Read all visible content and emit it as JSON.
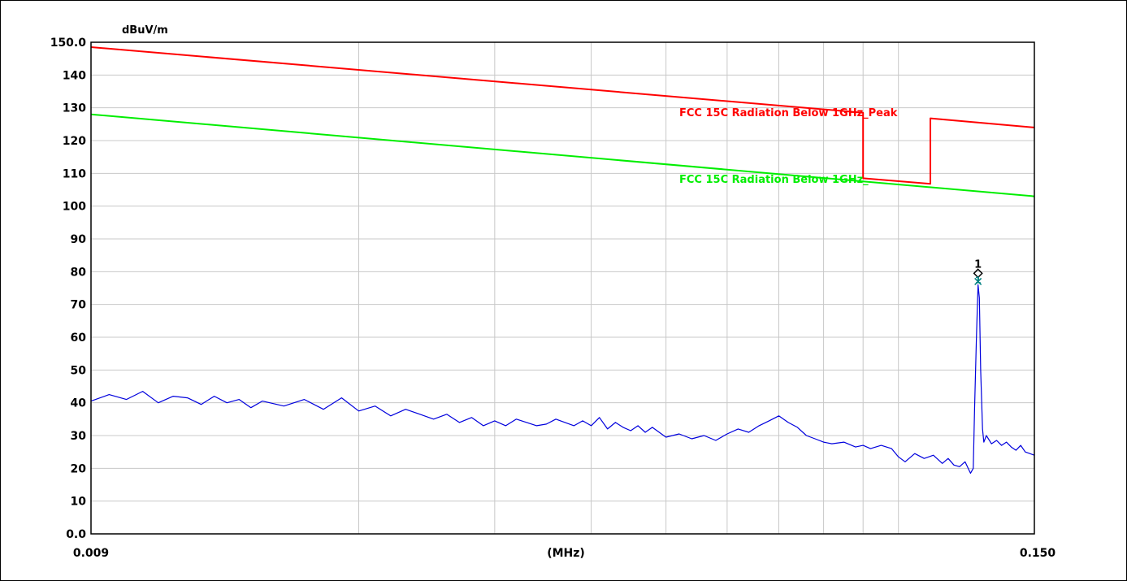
{
  "chart_data": {
    "type": "line",
    "ylabel": "dBuV/m",
    "xlabel": "(MHz)",
    "x_scale": "log",
    "xlim": [
      0.009,
      0.15
    ],
    "ylim": [
      0,
      150
    ],
    "y_ticks": [
      150,
      140,
      130,
      120,
      110,
      100,
      90,
      80,
      70,
      60,
      50,
      40,
      30,
      20,
      10,
      0
    ],
    "y_tick_labels": [
      "150.0",
      "140",
      "130",
      "120",
      "110",
      "100",
      "90",
      "80",
      "70",
      "60",
      "50",
      "40",
      "30",
      "20",
      "10",
      "0.0"
    ],
    "x_tick_labels": [
      "0.009",
      "(MHz)",
      "0.150"
    ],
    "grid": true,
    "series": [
      {
        "name": "FCC 15C Radiation Below 1GHz_Peak",
        "color": "#ff0000",
        "points": [
          [
            0.009,
            148.5
          ],
          [
            0.09,
            128.5
          ],
          [
            0.09,
            108.5
          ],
          [
            0.11,
            106.8
          ],
          [
            0.11,
            126.8
          ],
          [
            0.15,
            124.0
          ]
        ]
      },
      {
        "name": "FCC 15C Radiation Below 1GHz_",
        "color": "#00ee00",
        "points": [
          [
            0.009,
            128.0
          ],
          [
            0.15,
            103.0
          ]
        ]
      },
      {
        "color": "#0000dd",
        "points": [
          [
            0.009,
            40.5
          ],
          [
            0.0095,
            42.5
          ],
          [
            0.01,
            41.0
          ],
          [
            0.0105,
            43.5
          ],
          [
            0.011,
            40.0
          ],
          [
            0.0115,
            42.0
          ],
          [
            0.012,
            41.5
          ],
          [
            0.0125,
            39.5
          ],
          [
            0.013,
            42.0
          ],
          [
            0.0135,
            40.0
          ],
          [
            0.014,
            41.0
          ],
          [
            0.0145,
            38.5
          ],
          [
            0.015,
            40.5
          ],
          [
            0.016,
            39.0
          ],
          [
            0.017,
            41.0
          ],
          [
            0.018,
            38.0
          ],
          [
            0.019,
            41.5
          ],
          [
            0.02,
            37.5
          ],
          [
            0.021,
            39.0
          ],
          [
            0.022,
            36.0
          ],
          [
            0.023,
            38.0
          ],
          [
            0.024,
            36.5
          ],
          [
            0.025,
            35.0
          ],
          [
            0.026,
            36.5
          ],
          [
            0.027,
            34.0
          ],
          [
            0.028,
            35.5
          ],
          [
            0.029,
            33.0
          ],
          [
            0.03,
            34.5
          ],
          [
            0.031,
            33.0
          ],
          [
            0.032,
            35.0
          ],
          [
            0.033,
            34.0
          ],
          [
            0.034,
            33.0
          ],
          [
            0.035,
            33.5
          ],
          [
            0.036,
            35.0
          ],
          [
            0.037,
            34.0
          ],
          [
            0.038,
            33.0
          ],
          [
            0.039,
            34.5
          ],
          [
            0.04,
            33.0
          ],
          [
            0.041,
            35.5
          ],
          [
            0.042,
            32.0
          ],
          [
            0.043,
            34.0
          ],
          [
            0.044,
            32.5
          ],
          [
            0.045,
            31.5
          ],
          [
            0.046,
            33.0
          ],
          [
            0.047,
            31.0
          ],
          [
            0.048,
            32.5
          ],
          [
            0.05,
            29.5
          ],
          [
            0.052,
            30.5
          ],
          [
            0.054,
            29.0
          ],
          [
            0.056,
            30.0
          ],
          [
            0.058,
            28.5
          ],
          [
            0.06,
            30.5
          ],
          [
            0.062,
            32.0
          ],
          [
            0.064,
            31.0
          ],
          [
            0.066,
            33.0
          ],
          [
            0.068,
            34.5
          ],
          [
            0.07,
            36.0
          ],
          [
            0.072,
            34.0
          ],
          [
            0.074,
            32.5
          ],
          [
            0.076,
            30.0
          ],
          [
            0.078,
            29.0
          ],
          [
            0.08,
            28.0
          ],
          [
            0.082,
            27.5
          ],
          [
            0.085,
            28.0
          ],
          [
            0.088,
            26.5
          ],
          [
            0.09,
            27.0
          ],
          [
            0.092,
            26.0
          ],
          [
            0.095,
            27.0
          ],
          [
            0.098,
            26.0
          ],
          [
            0.1,
            23.5
          ],
          [
            0.102,
            22.0
          ],
          [
            0.105,
            24.5
          ],
          [
            0.108,
            23.0
          ],
          [
            0.111,
            24.0
          ],
          [
            0.114,
            21.5
          ],
          [
            0.116,
            23.0
          ],
          [
            0.118,
            21.0
          ],
          [
            0.12,
            20.5
          ],
          [
            0.122,
            22.0
          ],
          [
            0.124,
            18.5
          ],
          [
            0.125,
            20.0
          ],
          [
            0.1255,
            38.0
          ],
          [
            0.1262,
            60.0
          ],
          [
            0.1268,
            76.0
          ],
          [
            0.1273,
            72.0
          ],
          [
            0.1278,
            50.0
          ],
          [
            0.1285,
            32.0
          ],
          [
            0.129,
            28.0
          ],
          [
            0.13,
            30.0
          ],
          [
            0.132,
            27.5
          ],
          [
            0.134,
            28.5
          ],
          [
            0.136,
            27.0
          ],
          [
            0.138,
            28.0
          ],
          [
            0.14,
            26.5
          ],
          [
            0.142,
            25.5
          ],
          [
            0.144,
            27.0
          ],
          [
            0.146,
            25.0
          ],
          [
            0.148,
            24.5
          ],
          [
            0.15,
            24.0
          ]
        ]
      }
    ],
    "markers": [
      {
        "label": "1",
        "x": 0.1268,
        "y": 79.5,
        "color": "#000000"
      },
      {
        "label": "1",
        "x": 0.1268,
        "y": 77.0,
        "color": "#008080"
      }
    ]
  }
}
